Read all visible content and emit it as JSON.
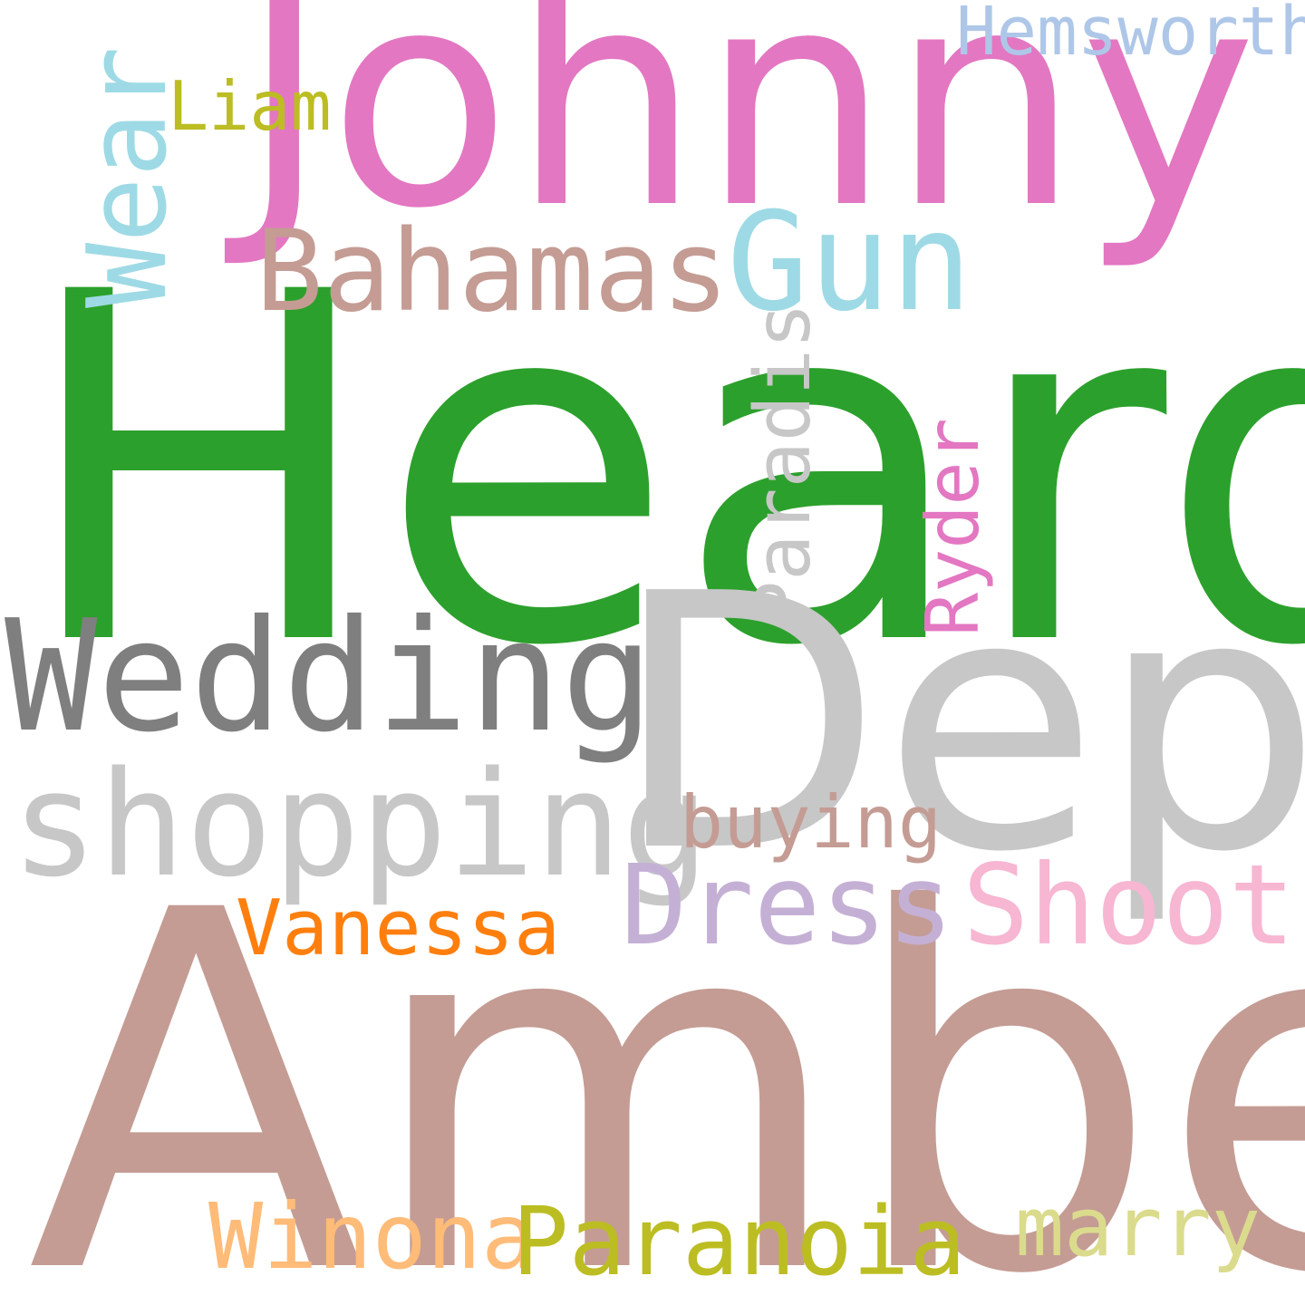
{
  "words": {
    "heard": {
      "text": "Heard",
      "color": "#2ca02c"
    },
    "amber": {
      "text": "Amber",
      "color": "#c49c94"
    },
    "depp": {
      "text": "Depp",
      "color": "#c7c7c7"
    },
    "johnny": {
      "text": "Johnny",
      "color": "#e377c2"
    },
    "wedding": {
      "text": "Wedding",
      "color": "#7f7f7f"
    },
    "shopping": {
      "text": "shopping",
      "color": "#c7c7c7"
    },
    "bahamas": {
      "text": "Bahamas",
      "color": "#c49c94"
    },
    "gun": {
      "text": "Gun",
      "color": "#9edae5"
    },
    "wear": {
      "text": "Wear",
      "color": "#9edae5"
    },
    "hemsworth": {
      "text": "Hemsworth",
      "color": "#aec7e8"
    },
    "liam": {
      "text": "Liam",
      "color": "#bcbd22"
    },
    "paradis": {
      "text": "Paradis",
      "color": "#c7c7c7"
    },
    "ryder": {
      "text": "Ryder",
      "color": "#e377c2"
    },
    "dress": {
      "text": "Dress",
      "color": "#c5b0d5"
    },
    "shoot": {
      "text": "Shoot",
      "color": "#f7b6d2"
    },
    "vanessa": {
      "text": "Vanessa",
      "color": "#ff7f0e"
    },
    "buying": {
      "text": "buying",
      "color": "#c49c94"
    },
    "winona": {
      "text": "Winona",
      "color": "#ffbb78"
    },
    "paranoia": {
      "text": "Paranoia",
      "color": "#bcbd22"
    },
    "marry": {
      "text": "marry",
      "color": "#dbdb8d"
    }
  }
}
